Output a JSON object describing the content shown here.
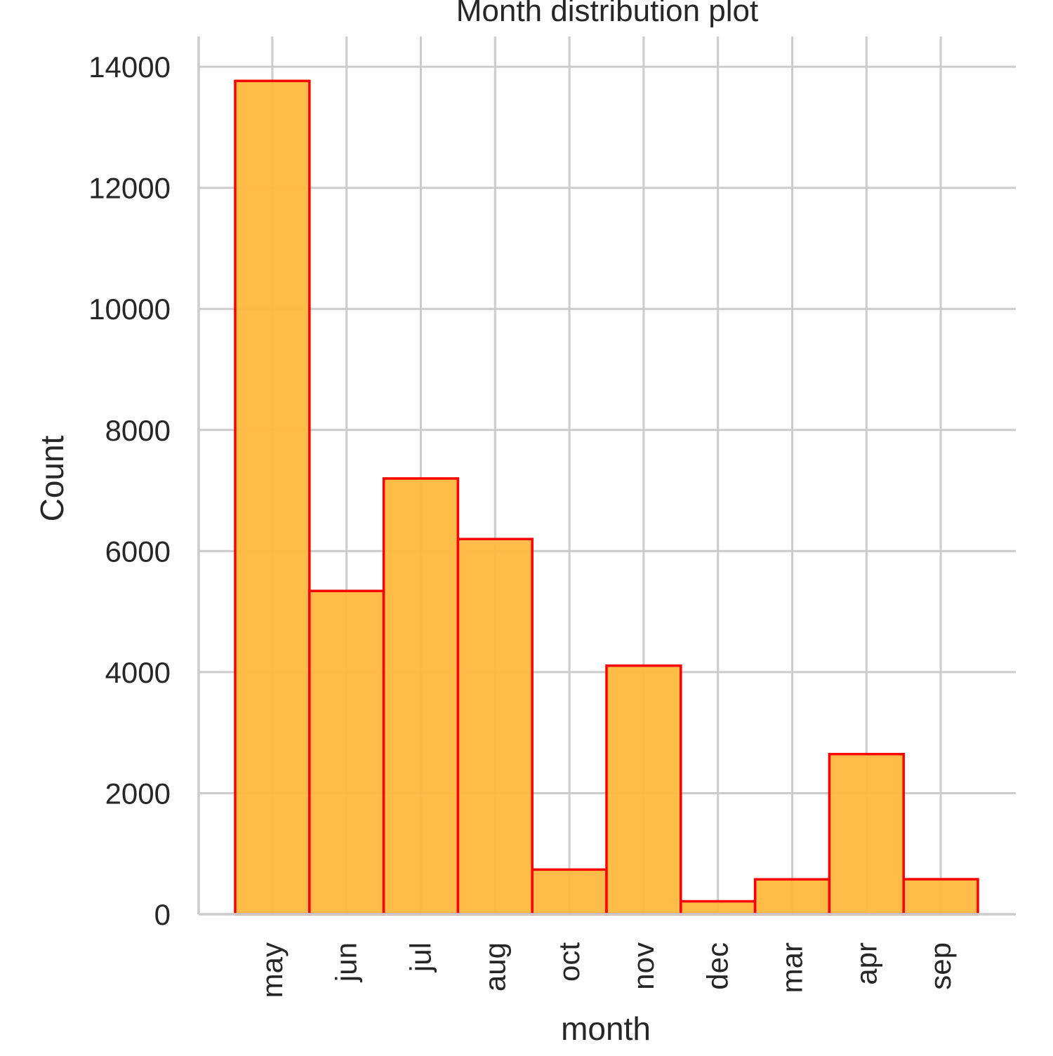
{
  "chart_data": {
    "type": "bar",
    "title": "Month distribution plot",
    "xlabel": "month",
    "ylabel": "Count",
    "categories": [
      "may",
      "jun",
      "jul",
      "aug",
      "oct",
      "nov",
      "dec",
      "mar",
      "apr",
      "sep"
    ],
    "values": [
      13766,
      5341,
      7199,
      6198,
      738,
      4107,
      214,
      577,
      2646,
      579
    ],
    "ylim": [
      0,
      14500
    ],
    "yticks": [
      0,
      2000,
      4000,
      6000,
      8000,
      10000,
      12000,
      14000
    ],
    "ytick_labels": [
      "0",
      "2000",
      "4000",
      "6000",
      "8000",
      "10000",
      "12000",
      "14000"
    ],
    "grid": true,
    "legend": "none",
    "colors": {
      "bar_fill": "#ffb83f",
      "bar_edge": "#ff0000",
      "grid": "#cccccc",
      "text": "#262626"
    }
  }
}
